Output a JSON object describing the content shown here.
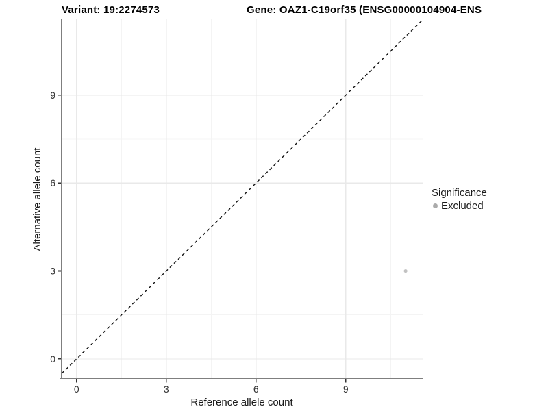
{
  "chart_data": {
    "type": "scatter",
    "titles": {
      "variant": "Variant: 19:2274573",
      "gene": "Gene: OAZ1-C19orf35 (ENSG00000104904-ENS"
    },
    "xlabel": "Reference allele count",
    "ylabel": "Alternative allele count",
    "x_ticks": [
      0,
      3,
      6,
      9
    ],
    "y_ticks": [
      0,
      3,
      6,
      9
    ],
    "x_minor_ticks": [
      1.5,
      4.5,
      7.5,
      10.5
    ],
    "y_minor_ticks": [
      1.5,
      4.5,
      7.5,
      10.5
    ],
    "xlim": [
      -0.5,
      11.57
    ],
    "ylim": [
      -0.68,
      11.59
    ],
    "grid": true,
    "legend_position": "right",
    "identity_line": {
      "type": "y=x",
      "style": "dashed",
      "color": "#111111"
    },
    "series": [
      {
        "name": "Excluded",
        "color": "#c2c2c2",
        "points": [
          {
            "x": 11,
            "y": 3
          }
        ]
      }
    ],
    "legend": {
      "title": "Significance",
      "items": [
        {
          "label": "Excluded",
          "color": "#ababab"
        }
      ]
    },
    "colors": {
      "axis_line": "#7f7f7f",
      "tick": "#333333",
      "grid_major": "#e9e9e9",
      "grid_minor": "#f4f4f4",
      "background": "#ffffff"
    }
  }
}
